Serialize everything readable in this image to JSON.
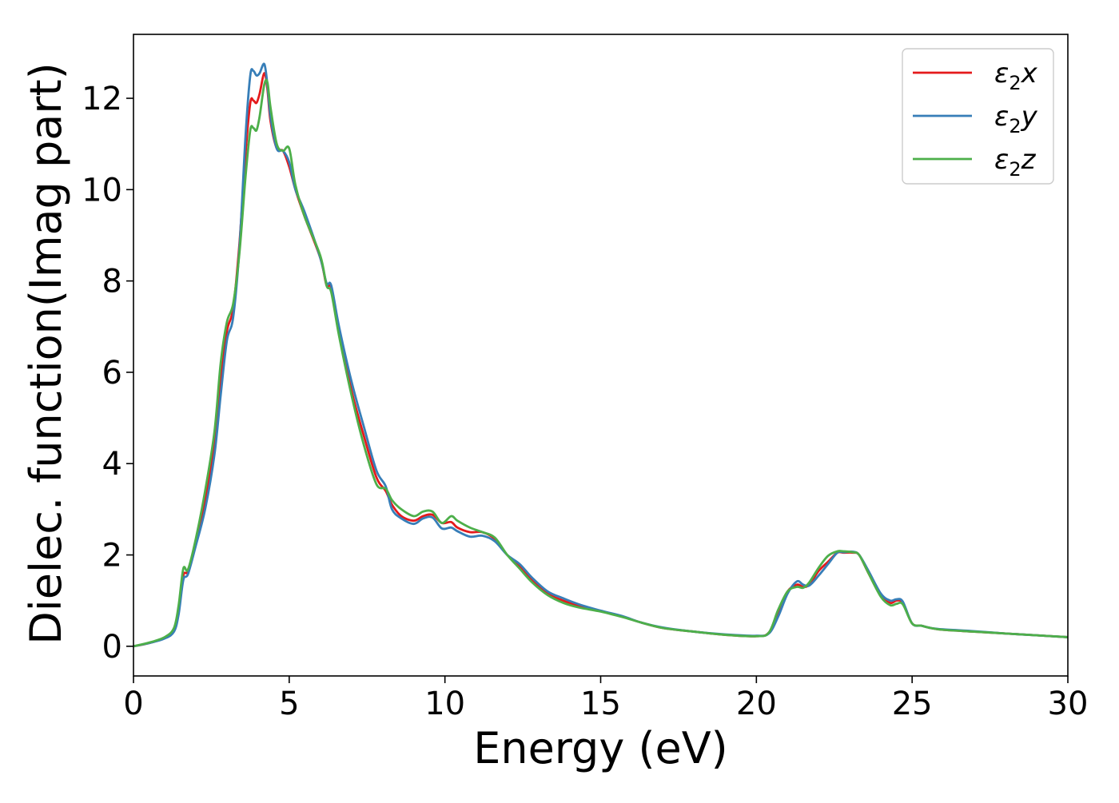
{
  "chart_data": {
    "type": "line",
    "title": "",
    "xlabel": "Energy (eV)",
    "ylabel": "Dielec. function(Imag part)",
    "xlim": [
      0,
      30
    ],
    "ylim": [
      -0.65,
      13.4
    ],
    "xticks": [
      0,
      5,
      10,
      15,
      20,
      25,
      30
    ],
    "yticks": [
      0,
      2,
      4,
      6,
      8,
      10,
      12
    ],
    "grid": false,
    "legend_position": "top-right",
    "series": [
      {
        "name": "ε2x",
        "label_base": "ε",
        "label_sub": "2",
        "label_suffix": "x",
        "color": "#e41a1c",
        "x": [
          0,
          0.5,
          1.0,
          1.3,
          1.45,
          1.6,
          1.75,
          2.0,
          2.3,
          2.6,
          2.8,
          3.0,
          3.2,
          3.4,
          3.6,
          3.75,
          3.85,
          3.95,
          4.05,
          4.2,
          4.3,
          4.4,
          4.6,
          4.8,
          5.0,
          5.2,
          5.5,
          6.0,
          6.2,
          6.35,
          6.6,
          7.0,
          7.4,
          7.8,
          8.1,
          8.3,
          8.6,
          9.0,
          9.3,
          9.6,
          9.9,
          10.2,
          10.4,
          10.8,
          11.2,
          11.6,
          12.0,
          12.4,
          12.8,
          13.3,
          13.8,
          14.3,
          15.0,
          15.7,
          16.3,
          17.0,
          18.0,
          19.0,
          20.0,
          20.4,
          20.7,
          21.0,
          21.3,
          21.5,
          21.7,
          22.0,
          22.3,
          22.6,
          22.8,
          23.1,
          23.3,
          23.6,
          24.0,
          24.3,
          24.5,
          24.7,
          25.0,
          25.3,
          25.6,
          26.0,
          27.0,
          28.0,
          29.0,
          30.0
        ],
        "y": [
          0,
          0.07,
          0.18,
          0.35,
          0.8,
          1.55,
          1.65,
          2.3,
          3.2,
          4.5,
          5.8,
          6.9,
          7.4,
          8.8,
          10.8,
          11.9,
          11.95,
          11.9,
          12.1,
          12.55,
          12.2,
          11.5,
          10.9,
          10.85,
          10.5,
          10.0,
          9.4,
          8.5,
          7.9,
          7.85,
          6.9,
          5.6,
          4.6,
          3.7,
          3.4,
          3.1,
          2.85,
          2.75,
          2.85,
          2.88,
          2.7,
          2.72,
          2.6,
          2.5,
          2.5,
          2.35,
          2.0,
          1.75,
          1.45,
          1.15,
          1.0,
          0.88,
          0.77,
          0.65,
          0.52,
          0.4,
          0.32,
          0.25,
          0.22,
          0.3,
          0.75,
          1.2,
          1.35,
          1.3,
          1.35,
          1.65,
          1.85,
          2.05,
          2.05,
          2.05,
          2.0,
          1.6,
          1.1,
          0.95,
          1.0,
          0.95,
          0.5,
          0.45,
          0.4,
          0.36,
          0.32,
          0.28,
          0.24,
          0.2
        ]
      },
      {
        "name": "ε2y",
        "label_base": "ε",
        "label_sub": "2",
        "label_suffix": "y",
        "color": "#377eb8",
        "x": [
          0,
          0.5,
          1.0,
          1.3,
          1.45,
          1.6,
          1.75,
          2.0,
          2.3,
          2.6,
          2.8,
          3.0,
          3.2,
          3.4,
          3.6,
          3.75,
          3.85,
          3.95,
          4.05,
          4.2,
          4.3,
          4.4,
          4.6,
          4.8,
          5.0,
          5.2,
          5.5,
          6.0,
          6.2,
          6.35,
          6.6,
          7.0,
          7.4,
          7.8,
          8.1,
          8.3,
          8.6,
          9.0,
          9.3,
          9.6,
          9.9,
          10.2,
          10.4,
          10.8,
          11.2,
          11.6,
          12.0,
          12.4,
          12.8,
          13.3,
          13.8,
          14.3,
          15.0,
          15.7,
          16.3,
          17.0,
          18.0,
          19.0,
          20.0,
          20.4,
          20.7,
          21.0,
          21.3,
          21.5,
          21.7,
          22.0,
          22.3,
          22.6,
          22.8,
          23.1,
          23.3,
          23.6,
          24.0,
          24.3,
          24.5,
          24.7,
          25.0,
          25.3,
          25.6,
          26.0,
          27.0,
          28.0,
          29.0,
          30.0
        ],
        "y": [
          0,
          0.07,
          0.17,
          0.32,
          0.7,
          1.45,
          1.58,
          2.2,
          3.0,
          4.2,
          5.5,
          6.7,
          7.2,
          8.7,
          11.2,
          12.5,
          12.6,
          12.5,
          12.55,
          12.75,
          12.3,
          11.6,
          10.9,
          10.85,
          10.6,
          10.0,
          9.5,
          8.5,
          7.95,
          7.9,
          7.0,
          5.8,
          4.8,
          3.85,
          3.5,
          3.0,
          2.8,
          2.68,
          2.8,
          2.82,
          2.58,
          2.6,
          2.52,
          2.4,
          2.42,
          2.3,
          2.0,
          1.8,
          1.5,
          1.2,
          1.05,
          0.92,
          0.78,
          0.66,
          0.52,
          0.41,
          0.32,
          0.26,
          0.23,
          0.28,
          0.65,
          1.15,
          1.42,
          1.35,
          1.33,
          1.55,
          1.8,
          2.05,
          2.06,
          2.07,
          2.0,
          1.65,
          1.15,
          1.0,
          1.03,
          0.98,
          0.5,
          0.45,
          0.4,
          0.37,
          0.33,
          0.28,
          0.24,
          0.2
        ]
      },
      {
        "name": "ε2z",
        "label_base": "ε",
        "label_sub": "2",
        "label_suffix": "z",
        "color": "#4daf4a",
        "x": [
          0,
          0.5,
          1.0,
          1.3,
          1.45,
          1.6,
          1.75,
          2.0,
          2.3,
          2.6,
          2.8,
          3.0,
          3.2,
          3.4,
          3.6,
          3.75,
          3.85,
          3.95,
          4.05,
          4.2,
          4.3,
          4.4,
          4.6,
          4.8,
          5.0,
          5.2,
          5.5,
          6.0,
          6.2,
          6.35,
          6.6,
          7.0,
          7.4,
          7.8,
          8.1,
          8.3,
          8.6,
          9.0,
          9.3,
          9.6,
          9.9,
          10.2,
          10.4,
          10.8,
          11.2,
          11.6,
          12.0,
          12.4,
          12.8,
          13.3,
          13.8,
          14.3,
          15.0,
          15.7,
          16.3,
          17.0,
          18.0,
          19.0,
          20.0,
          20.4,
          20.7,
          21.0,
          21.3,
          21.5,
          21.7,
          22.0,
          22.3,
          22.6,
          22.8,
          23.1,
          23.3,
          23.6,
          24.0,
          24.3,
          24.5,
          24.7,
          25.0,
          25.3,
          25.6,
          26.0,
          27.0,
          28.0,
          29.0,
          30.0
        ],
        "y": [
          0,
          0.08,
          0.2,
          0.4,
          0.9,
          1.7,
          1.68,
          2.35,
          3.4,
          4.7,
          6.2,
          7.1,
          7.5,
          8.6,
          10.3,
          11.3,
          11.35,
          11.3,
          11.6,
          12.3,
          12.35,
          11.8,
          11.0,
          10.85,
          10.9,
          10.1,
          9.4,
          8.55,
          7.9,
          7.75,
          6.8,
          5.5,
          4.4,
          3.55,
          3.45,
          3.2,
          3.0,
          2.85,
          2.95,
          2.95,
          2.7,
          2.85,
          2.75,
          2.6,
          2.5,
          2.38,
          2.0,
          1.7,
          1.4,
          1.12,
          0.95,
          0.85,
          0.76,
          0.64,
          0.52,
          0.4,
          0.32,
          0.25,
          0.22,
          0.3,
          0.8,
          1.2,
          1.3,
          1.28,
          1.4,
          1.72,
          1.98,
          2.08,
          2.08,
          2.06,
          2.0,
          1.6,
          1.08,
          0.9,
          0.93,
          0.92,
          0.5,
          0.45,
          0.4,
          0.36,
          0.32,
          0.28,
          0.24,
          0.2
        ]
      }
    ]
  }
}
